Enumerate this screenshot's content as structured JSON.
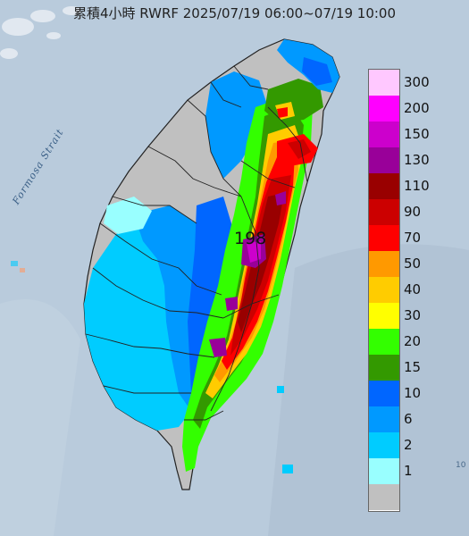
{
  "title": "累積4小時 RWRF 2025/07/19 06:00~07/19 10:00",
  "strait_label": "Formosa Strait",
  "max_value_label": "198",
  "corner_mark": "10",
  "legend": [
    {
      "label": "300",
      "color": "#ffc8ff"
    },
    {
      "label": "200",
      "color": "#ff00ff"
    },
    {
      "label": "150",
      "color": "#cc00cc"
    },
    {
      "label": "130",
      "color": "#990099"
    },
    {
      "label": "110",
      "color": "#990000"
    },
    {
      "label": "90",
      "color": "#cc0000"
    },
    {
      "label": "70",
      "color": "#ff0000"
    },
    {
      "label": "50",
      "color": "#ff9900"
    },
    {
      "label": "40",
      "color": "#ffcc00"
    },
    {
      "label": "30",
      "color": "#ffff00"
    },
    {
      "label": "20",
      "color": "#33ff00"
    },
    {
      "label": "15",
      "color": "#339900"
    },
    {
      "label": "10",
      "color": "#0066ff"
    },
    {
      "label": "6",
      "color": "#0099ff"
    },
    {
      "label": "2",
      "color": "#00ccff"
    },
    {
      "label": "1",
      "color": "#99ffff"
    },
    {
      "label": "",
      "color": "#c0c0c0"
    }
  ],
  "colors": {
    "sea": "#b9cbdc",
    "no_rain": "#c0c0c0",
    "boundary": "#222222"
  }
}
